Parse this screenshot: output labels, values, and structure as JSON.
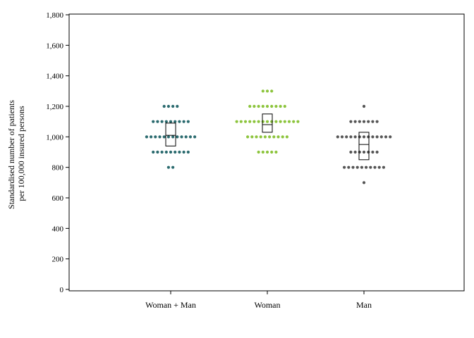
{
  "chart_data": {
    "type": "scatter",
    "subtype": "dot-strip with mean and 95% CI box",
    "title": "",
    "xlabel": "",
    "ylabel_lines": [
      "Standardised number of patients",
      "per 100,000 insured persons"
    ],
    "ylim": [
      0,
      1800
    ],
    "yticks": [
      0,
      200,
      400,
      600,
      800,
      1000,
      1200,
      1400,
      1600,
      1800
    ],
    "ytick_labels": [
      "0",
      "200",
      "400",
      "600",
      "800",
      "1,000",
      "1,200",
      "1,400",
      "1,600",
      "1,800"
    ],
    "grid": false,
    "legend": "none",
    "categories": [
      "Woman + Man",
      "Woman",
      "Man"
    ],
    "series": [
      {
        "category": "Woman + Man",
        "color": "#2a6a6e",
        "bins": [
          {
            "value": 800,
            "count": 2
          },
          {
            "value": 900,
            "count": 9
          },
          {
            "value": 1000,
            "count": 12
          },
          {
            "value": 1100,
            "count": 9
          },
          {
            "value": 1200,
            "count": 4
          }
        ],
        "box": {
          "low": 940,
          "mid": 1010,
          "high": 1090
        }
      },
      {
        "category": "Woman",
        "color": "#8cc43c",
        "bins": [
          {
            "value": 900,
            "count": 5
          },
          {
            "value": 1000,
            "count": 10
          },
          {
            "value": 1100,
            "count": 15
          },
          {
            "value": 1200,
            "count": 9
          },
          {
            "value": 1300,
            "count": 3
          }
        ],
        "box": {
          "low": 1030,
          "mid": 1080,
          "high": 1150
        }
      },
      {
        "category": "Man",
        "color": "#555555",
        "bins": [
          {
            "value": 700,
            "count": 1
          },
          {
            "value": 800,
            "count": 10
          },
          {
            "value": 900,
            "count": 7
          },
          {
            "value": 1000,
            "count": 13
          },
          {
            "value": 1100,
            "count": 7
          },
          {
            "value": 1200,
            "count": 1
          }
        ],
        "box": {
          "low": 850,
          "mid": 950,
          "high": 1030
        }
      }
    ]
  }
}
